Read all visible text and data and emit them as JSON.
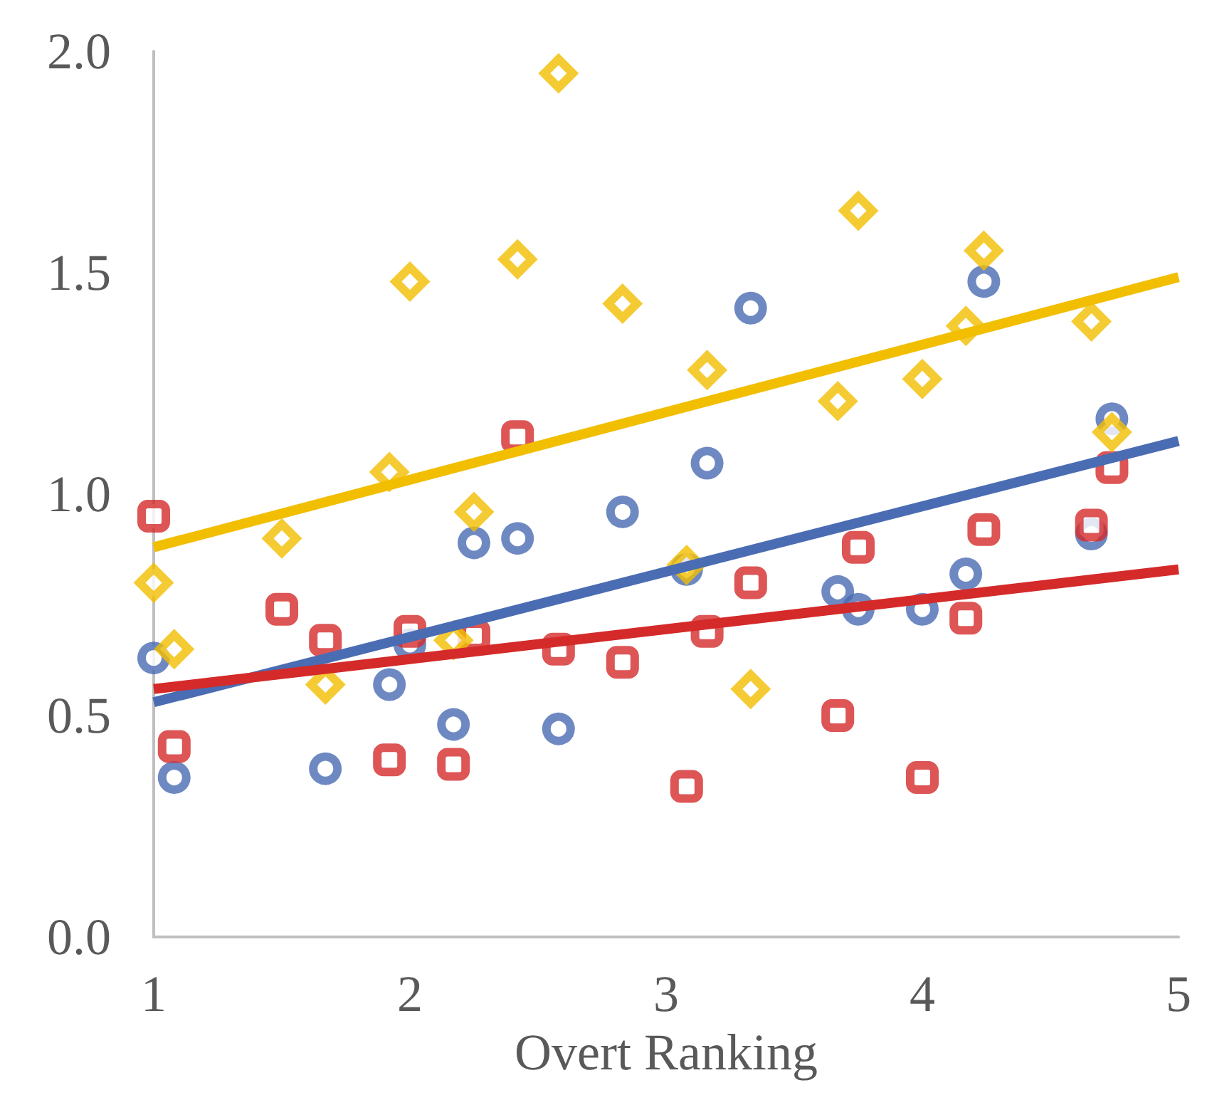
{
  "chart_data": {
    "type": "scatter",
    "xlabel": "Overt Ranking",
    "xlim": [
      1,
      5
    ],
    "xticks": [
      1,
      2,
      3,
      4,
      5
    ],
    "ylim": [
      0,
      2
    ],
    "yticks": [
      {
        "value": 0,
        "label": "0.0"
      },
      {
        "value": 0.5,
        "label": "0.5"
      },
      {
        "value": 1,
        "label": "1.0"
      },
      {
        "value": 1.5,
        "label": "1.5"
      },
      {
        "value": 2,
        "label": "2.0"
      }
    ],
    "grid": false,
    "series": [
      {
        "marker": "circle",
        "color": "#4a6cb3",
        "x": [
          1.0,
          1.08,
          1.67,
          1.92,
          2.0,
          2.17,
          2.25,
          2.42,
          2.58,
          2.83,
          3.08,
          3.16,
          3.33,
          3.67,
          3.75,
          4.0,
          4.17,
          4.24,
          4.66,
          4.74
        ],
        "values": [
          0.63,
          0.36,
          0.38,
          0.57,
          0.66,
          0.48,
          0.89,
          0.9,
          0.47,
          0.96,
          0.83,
          1.07,
          1.42,
          0.78,
          0.74,
          0.74,
          0.82,
          1.48,
          0.91,
          1.17
        ]
      },
      {
        "marker": "square",
        "color": "#d42a2a",
        "x": [
          1.0,
          1.08,
          1.5,
          1.67,
          1.92,
          2.0,
          2.17,
          2.25,
          2.42,
          2.58,
          2.83,
          3.08,
          3.16,
          3.33,
          3.67,
          3.75,
          4.0,
          4.17,
          4.24,
          4.66,
          4.74
        ],
        "values": [
          0.95,
          0.43,
          0.74,
          0.67,
          0.4,
          0.69,
          0.39,
          0.68,
          1.13,
          0.65,
          0.62,
          0.34,
          0.69,
          0.8,
          0.5,
          0.88,
          0.36,
          0.72,
          0.92,
          0.93,
          1.06
        ]
      },
      {
        "marker": "diamond",
        "color": "#f2be00",
        "x": [
          1.0,
          1.08,
          1.5,
          1.67,
          1.92,
          2.0,
          2.17,
          2.25,
          2.42,
          2.58,
          2.83,
          3.08,
          3.16,
          3.33,
          3.67,
          3.75,
          4.0,
          4.17,
          4.24,
          4.66,
          4.74
        ],
        "values": [
          0.8,
          0.65,
          0.9,
          0.57,
          1.05,
          1.48,
          0.67,
          0.96,
          1.53,
          1.95,
          1.43,
          0.84,
          1.28,
          0.56,
          1.21,
          1.64,
          1.26,
          1.38,
          1.55,
          1.39,
          1.14
        ]
      },
      {
        "type": "line",
        "marker": "none",
        "color": "#f2be00",
        "x": [
          1,
          5
        ],
        "values": [
          0.88,
          1.49
        ]
      },
      {
        "type": "line",
        "marker": "none",
        "color": "#4a6cb3",
        "x": [
          1,
          5
        ],
        "values": [
          0.53,
          1.12
        ]
      },
      {
        "type": "line",
        "marker": "none",
        "color": "#d42a2a",
        "x": [
          1,
          5
        ],
        "values": [
          0.56,
          0.83
        ]
      }
    ]
  }
}
